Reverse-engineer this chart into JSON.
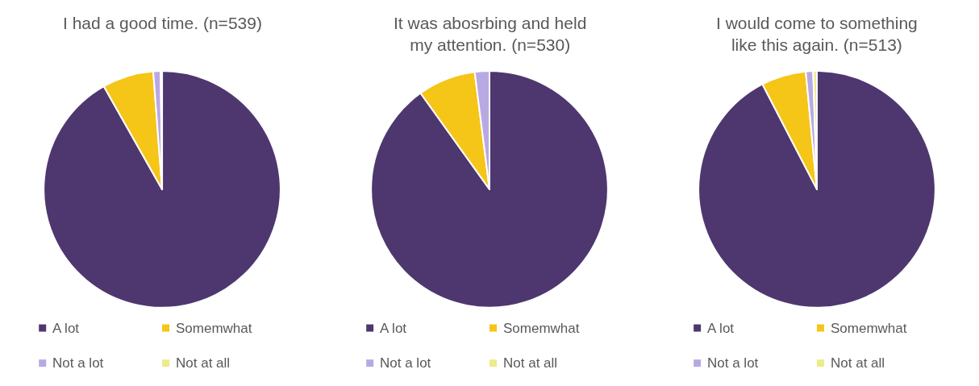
{
  "chart_data": [
    {
      "type": "pie",
      "title": "I had a good time. (n=539)",
      "categories": [
        "A lot",
        "Somemwhat",
        "Not a lot",
        "Not at all"
      ],
      "values": [
        91.8,
        7.0,
        1.0,
        0.2
      ],
      "colors": [
        "#4e376f",
        "#f5c518",
        "#b9a9e3",
        "#eeeb8a"
      ],
      "legend": "bottom"
    },
    {
      "type": "pie",
      "title": "It was abosrbing and held\nmy attention. (n=530)",
      "categories": [
        "A lot",
        "Somemwhat",
        "Not a lot",
        "Not at all"
      ],
      "values": [
        90.1,
        7.9,
        2.0,
        0.0
      ],
      "colors": [
        "#4e376f",
        "#f5c518",
        "#b9a9e3",
        "#eeeb8a"
      ],
      "legend": "bottom"
    },
    {
      "type": "pie",
      "title": "I would come to something\nlike this again. (n=513)",
      "categories": [
        "A lot",
        "Somemwhat",
        "Not a lot",
        "Not at all"
      ],
      "values": [
        92.4,
        6.1,
        1.0,
        0.5
      ],
      "colors": [
        "#4e376f",
        "#f5c518",
        "#b9a9e3",
        "#eeeb8a"
      ],
      "legend": "bottom"
    }
  ]
}
